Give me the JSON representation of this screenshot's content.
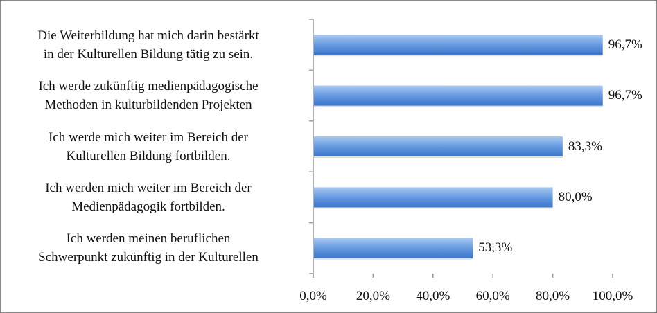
{
  "chart_data": {
    "type": "bar",
    "orientation": "horizontal",
    "categories": [
      [
        "Die Weiterbildung hat mich darin bestärkt",
        "in der Kulturellen Bildung tätig zu sein."
      ],
      [
        "Ich werde zukünftig medienpädagogische",
        "Methoden in kulturbildenden Projekten"
      ],
      [
        "Ich werde mich weiter im Bereich der",
        "Kulturellen Bildung fortbilden."
      ],
      [
        "Ich werden mich weiter im Bereich der",
        "Medienpädagogik fortbilden."
      ],
      [
        "Ich werden meinen beruflichen",
        "Schwerpunkt zukünftig in der Kulturellen"
      ]
    ],
    "values": [
      96.7,
      96.7,
      83.3,
      80.0,
      53.3
    ],
    "data_labels": [
      "96,7%",
      "96,7%",
      "83,3%",
      "80,0%",
      "53,3%"
    ],
    "xlim": [
      0,
      100
    ],
    "x_ticks": [
      "0,0%",
      "20,0%",
      "40,0%",
      "60,0%",
      "80,0%",
      "100,0%"
    ],
    "grid": false,
    "legend": "none",
    "bar_color": "#4a86d8",
    "title": "",
    "xlabel": "",
    "ylabel": ""
  }
}
